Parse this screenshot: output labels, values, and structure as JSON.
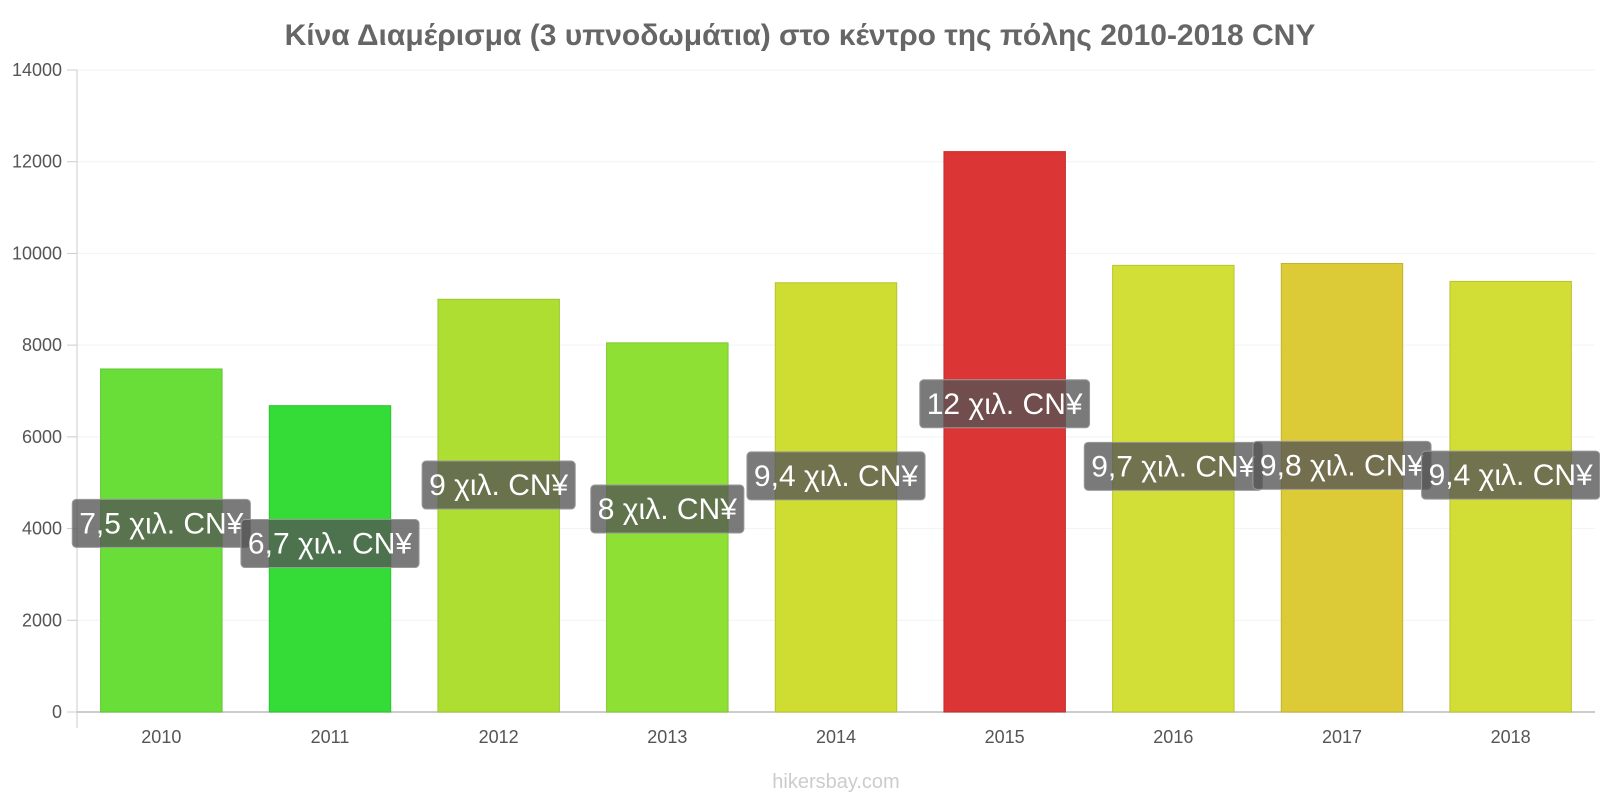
{
  "chart_data": {
    "type": "bar",
    "title": "Κίνα Διαμέρισμα (3 υπνοδωμάτια) στο κέντρο της πόλης 2010-2018 CNY",
    "xlabel": "",
    "ylabel": "",
    "ylim": [
      0,
      14000
    ],
    "yticks": [
      0,
      2000,
      4000,
      6000,
      8000,
      10000,
      12000,
      14000
    ],
    "grid": true,
    "categories": [
      "2010",
      "2011",
      "2012",
      "2013",
      "2014",
      "2015",
      "2016",
      "2017",
      "2018"
    ],
    "values": [
      7480,
      6680,
      9000,
      8050,
      9360,
      12220,
      9740,
      9780,
      9390
    ],
    "data_labels": [
      "7,5 χιλ. CN¥",
      "6,7 χιλ. CN¥",
      "9 χιλ. CN¥",
      "8 χιλ. CN¥",
      "9,4 χιλ. CN¥",
      "12 χιλ. CN¥",
      "9,7 χιλ. CN¥",
      "9,8 χιλ. CN¥",
      "9,4 χιλ. CN¥"
    ],
    "bar_colors": [
      "#6ade38",
      "#35dc38",
      "#afde33",
      "#8fe035",
      "#cfdd33",
      "#dc3535",
      "#d1df36",
      "#dcca36",
      "#d2de36"
    ],
    "bar_stroke_colors": [
      "#5cc530",
      "#2cc230",
      "#9ac52c",
      "#7ec62e",
      "#b6c32c",
      "#c02d2d",
      "#b8c52f",
      "#c2b22f",
      "#b9c42f"
    ]
  },
  "watermark": "hikersbay.com"
}
